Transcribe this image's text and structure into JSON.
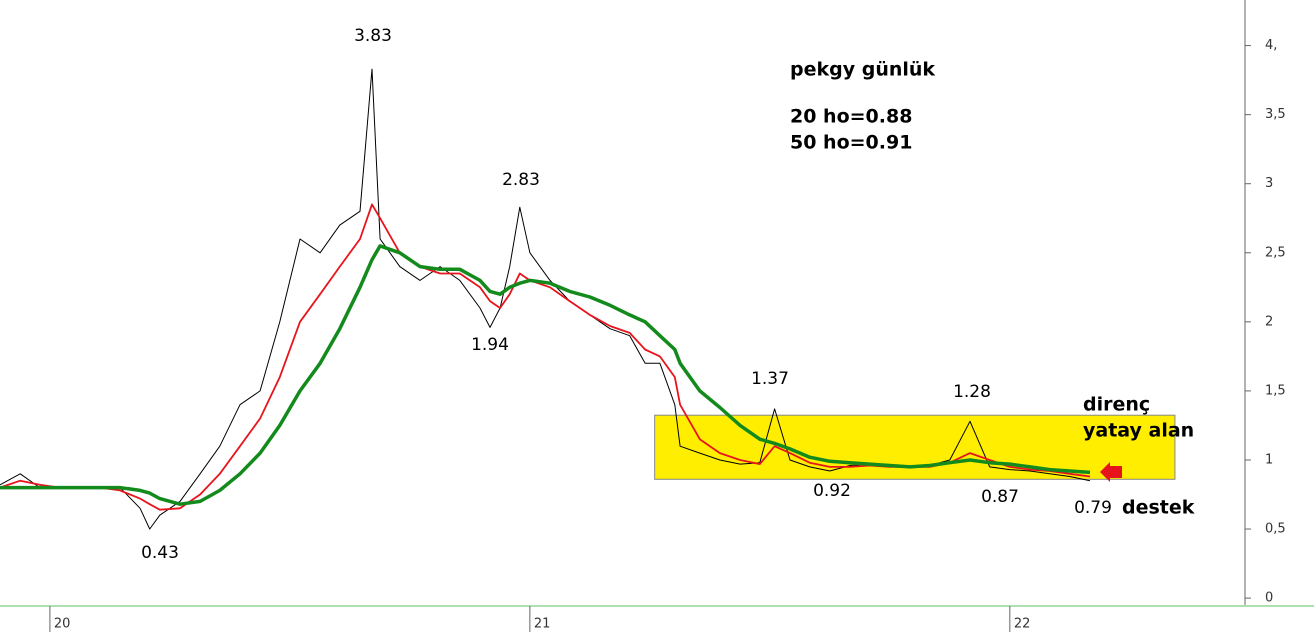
{
  "chart_data": {
    "type": "line",
    "title": "pekgy günlük",
    "subtitle": [
      "20 ho=0.88",
      "50 ho=0.91"
    ],
    "annotations": [
      "3.83",
      "2.83",
      "1.94",
      "0.43",
      "1.37",
      "1.28",
      "0.92",
      "0.87",
      "0.79",
      "destek",
      "direnç",
      "yatay alan"
    ],
    "x": [
      2019.896,
      2019.938,
      2019.979,
      2020.021,
      2020.063,
      2020.104,
      2020.146,
      2020.188,
      2020.208,
      2020.229,
      2020.271,
      2020.313,
      2020.354,
      2020.396,
      2020.438,
      2020.479,
      2020.521,
      2020.563,
      2020.604,
      2020.646,
      2020.671,
      2020.688,
      2020.729,
      2020.771,
      2020.813,
      2020.854,
      2020.896,
      2020.917,
      2020.938,
      2020.958,
      2020.979,
      2021.0,
      2021.042,
      2021.083,
      2021.125,
      2021.167,
      2021.208,
      2021.24,
      2021.271,
      2021.302,
      2021.313,
      2021.354,
      2021.396,
      2021.438,
      2021.479,
      2021.51,
      2021.542,
      2021.583,
      2021.625,
      2021.667,
      2021.708,
      2021.75,
      2021.792,
      2021.833,
      2021.875,
      2021.917,
      2021.958,
      2022.0,
      2022.042,
      2022.083,
      2022.125,
      2022.167
    ],
    "series": [
      {
        "color": "#000000",
        "width": 1,
        "values": [
          0.82,
          0.9,
          0.8,
          0.8,
          0.8,
          0.8,
          0.8,
          0.65,
          0.5,
          0.6,
          0.7,
          0.9,
          1.1,
          1.4,
          1.5,
          2.0,
          2.6,
          2.5,
          2.7,
          2.8,
          3.83,
          2.6,
          2.4,
          2.3,
          2.4,
          2.3,
          2.1,
          1.96,
          2.1,
          2.4,
          2.83,
          2.5,
          2.3,
          2.15,
          2.05,
          1.95,
          1.9,
          1.7,
          1.7,
          1.4,
          1.1,
          1.05,
          1.0,
          0.97,
          0.98,
          1.37,
          1.0,
          0.95,
          0.92,
          0.96,
          0.97,
          0.95,
          0.95,
          0.96,
          1.0,
          1.28,
          0.95,
          0.93,
          0.92,
          0.9,
          0.88,
          0.85
        ]
      },
      {
        "color": "#e8141c",
        "width": 1.8,
        "values": [
          0.8,
          0.85,
          0.82,
          0.8,
          0.8,
          0.8,
          0.78,
          0.72,
          0.68,
          0.64,
          0.65,
          0.75,
          0.9,
          1.1,
          1.3,
          1.6,
          2.0,
          2.2,
          2.4,
          2.6,
          2.85,
          2.75,
          2.5,
          2.4,
          2.35,
          2.35,
          2.25,
          2.15,
          2.1,
          2.2,
          2.35,
          2.3,
          2.25,
          2.15,
          2.05,
          1.97,
          1.92,
          1.8,
          1.75,
          1.6,
          1.4,
          1.15,
          1.05,
          1.0,
          0.97,
          1.1,
          1.05,
          0.98,
          0.95,
          0.95,
          0.96,
          0.95,
          0.95,
          0.95,
          0.98,
          1.05,
          1.0,
          0.95,
          0.93,
          0.92,
          0.9,
          0.88
        ]
      },
      {
        "color": "#138a1c",
        "width": 3.5,
        "values": [
          0.8,
          0.8,
          0.8,
          0.8,
          0.8,
          0.8,
          0.8,
          0.78,
          0.76,
          0.72,
          0.68,
          0.7,
          0.78,
          0.9,
          1.05,
          1.25,
          1.5,
          1.7,
          1.95,
          2.25,
          2.45,
          2.55,
          2.5,
          2.4,
          2.38,
          2.38,
          2.3,
          2.22,
          2.2,
          2.25,
          2.28,
          2.3,
          2.28,
          2.22,
          2.18,
          2.12,
          2.05,
          2.0,
          1.9,
          1.8,
          1.7,
          1.5,
          1.38,
          1.25,
          1.15,
          1.12,
          1.08,
          1.02,
          0.99,
          0.98,
          0.97,
          0.96,
          0.95,
          0.96,
          0.98,
          1.0,
          0.98,
          0.97,
          0.95,
          0.93,
          0.92,
          0.91
        ]
      }
    ],
    "zone": {
      "x": [
        2021.26,
        2022.344
      ],
      "y": [
        0.86,
        1.324
      ],
      "color": "#ffee00"
    },
    "xlim": [
      2019.896,
      2022.49
    ],
    "xticks": [
      {
        "value": 2020,
        "label": "20"
      },
      {
        "value": 2021,
        "label": "21"
      },
      {
        "value": 2022,
        "label": "22"
      }
    ],
    "ylim": [
      -0.05,
      4.33
    ],
    "yticks": [
      0,
      {
        "value": 0.5,
        "label": "0,5"
      },
      1,
      {
        "value": 1.5,
        "label": "1,5"
      },
      2,
      {
        "value": 2.5,
        "label": "2,5"
      },
      3,
      {
        "value": 3.5,
        "label": "3,5"
      },
      {
        "value": 4,
        "label": "4,"
      }
    ],
    "axis_side": "right"
  }
}
